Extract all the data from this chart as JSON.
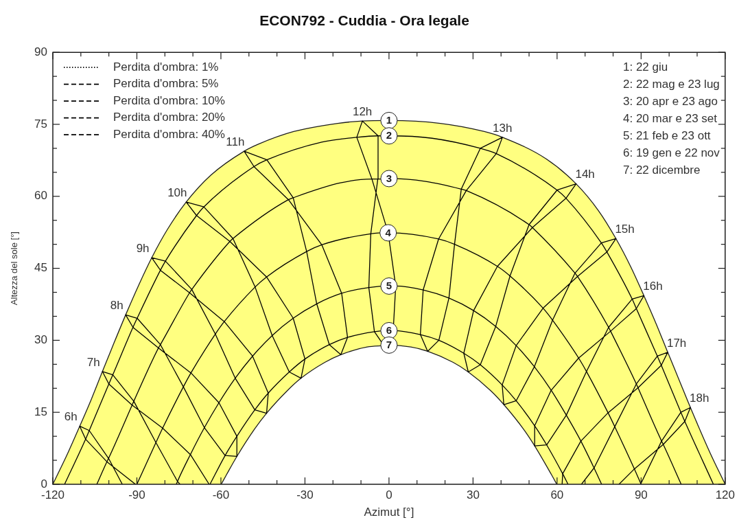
{
  "chart_data": {
    "type": "line",
    "title": "ECON792 - Cuddia - Ora legale",
    "xlabel": "Azimut [°]",
    "ylabel": "Altezza del sole [°]",
    "xlim": [
      -120,
      120
    ],
    "ylim": [
      0,
      90
    ],
    "xticks": [
      -120,
      {
        "value": -110,
        "label": null
      },
      {
        "value": -100,
        "label": null
      },
      -90,
      {
        "value": -80,
        "label": null
      },
      {
        "value": -70,
        "label": null
      },
      -60,
      {
        "value": -50,
        "label": null
      },
      {
        "value": -40,
        "label": null
      },
      -30,
      {
        "value": -20,
        "label": null
      },
      {
        "value": -10,
        "label": null
      },
      0,
      {
        "value": 10,
        "label": null
      },
      {
        "value": 20,
        "label": null
      },
      30,
      {
        "value": 40,
        "label": null
      },
      {
        "value": 50,
        "label": null
      },
      60,
      {
        "value": 70,
        "label": null
      },
      {
        "value": 80,
        "label": null
      },
      90,
      {
        "value": 100,
        "label": null
      },
      {
        "value": 110,
        "label": null
      },
      120
    ],
    "yticks": [
      0,
      {
        "value": 5,
        "label": null
      },
      {
        "value": 10,
        "label": null
      },
      15,
      {
        "value": 20,
        "label": null
      },
      {
        "value": 25,
        "label": null
      },
      30,
      {
        "value": 35,
        "label": null
      },
      {
        "value": 40,
        "label": null
      },
      45,
      {
        "value": 50,
        "label": null
      },
      {
        "value": 55,
        "label": null
      },
      60,
      {
        "value": 65,
        "label": null
      },
      {
        "value": 70,
        "label": null
      },
      75,
      {
        "value": 80,
        "label": null
      },
      {
        "value": 85,
        "label": null
      },
      90
    ],
    "marker": "none",
    "legend": "top left",
    "series": [
      {
        "name": "1",
        "type": "area",
        "color": "#ffff80",
        "x": [
          -120,
          -114.5,
          -110.4,
          -106.2,
          -102.3,
          -98.2,
          -94,
          -89.5,
          -84.7,
          -79.1,
          -72.4,
          -63.6,
          -51.7,
          -46.5,
          -34,
          -18.3,
          -9.5,
          0,
          18.3,
          34,
          40.5,
          56.1,
          66.8,
          74.8,
          81,
          86.4,
          91,
          95.4,
          99.5,
          103.6,
          107.6,
          114.5,
          120
        ],
        "values": [
          0,
          6.7,
          12.1,
          17.8,
          23.5,
          29.4,
          35.3,
          41.3,
          47.2,
          53.1,
          58.8,
          64.4,
          69.4,
          70.9,
          73.5,
          75.2,
          75.7,
          75.8,
          75.2,
          73.5,
          72.3,
          67.8,
          62.6,
          57,
          51.2,
          45.2,
          39.3,
          33.4,
          27.5,
          21.7,
          16,
          6.7,
          0
        ]
      },
      {
        "name": "2",
        "color": "#000000",
        "x": [
          -115.8,
          -108.3,
          -107,
          -100,
          -98.6,
          -91.4,
          -89.9,
          -81.6,
          -79.8,
          -68.7,
          -66.1,
          -48.2,
          -43.6,
          -24,
          -11.5,
          -3.9,
          0,
          15.4,
          32.6,
          38.3,
          60,
          63.2,
          75.8,
          77.8,
          86.8,
          88.3,
          95.8,
          97.2,
          104.2,
          105.6,
          115.8
        ],
        "values": [
          0,
          9.4,
          11.2,
          20.9,
          22.8,
          32.7,
          34.6,
          44.6,
          46.5,
          56,
          57.8,
          66.2,
          67.6,
          71.3,
          72.3,
          72.6,
          72.6,
          72.1,
          70,
          68.9,
          61.3,
          59.6,
          50.3,
          48.4,
          38.6,
          36.6,
          26.7,
          24.8,
          15,
          13.1,
          0
        ]
      },
      {
        "name": "3",
        "color": "#000000",
        "x": [
          -104.3,
          -100.7,
          -100.1,
          -91.7,
          -91.1,
          -82.3,
          -81.6,
          -71.2,
          -70.4,
          -56.8,
          -55.7,
          -35.9,
          -34.2,
          -17.3,
          -6.1,
          -4,
          0,
          13.1,
          25.8,
          27.6,
          50,
          51.2,
          66.4,
          67.3,
          78.4,
          79.1,
          88.3,
          88.9,
          97.3,
          97.9,
          104.3
        ],
        "values": [
          0,
          4.7,
          5.4,
          16.5,
          17.3,
          28.4,
          29.1,
          39.9,
          40.6,
          50.6,
          51.2,
          59.3,
          59.7,
          62.8,
          63.6,
          63.6,
          63.7,
          63.1,
          61.5,
          61.2,
          54.1,
          53.5,
          44,
          43.3,
          32.7,
          31.9,
          20.9,
          20.1,
          9,
          8.3,
          0
        ]
      },
      {
        "name": "4",
        "color": "#000000",
        "x": [
          -90,
          -83.2,
          -80.8,
          -73.4,
          -70.7,
          -62,
          -58.8,
          -47.8,
          -43.7,
          -29.4,
          -24,
          -6.5,
          -0.3,
          17.7,
          23.4,
          38.7,
          43.2,
          55,
          58.4,
          67.7,
          70.5,
          78.2,
          80.6,
          87.6,
          90
        ],
        "values": [
          0,
          8.7,
          11.7,
          20.3,
          23.2,
          31.3,
          33.9,
          41.1,
          43.2,
          48.5,
          49.9,
          52.2,
          52.4,
          51.1,
          50,
          45.4,
          43.4,
          36.7,
          34.2,
          26.3,
          23.5,
          14.9,
          12,
          3.2,
          0
        ]
      },
      {
        "name": "5",
        "color": "#000000",
        "x": [
          -75.9,
          -75.5,
          -70.9,
          -65.9,
          -60.7,
          -54.9,
          -48.7,
          -41.7,
          -34.2,
          -25.8,
          -16.9,
          -7.2,
          0,
          2.4,
          12.2,
          21.4,
          30.2,
          38.1,
          45.4,
          51.9,
          57.9,
          63.3,
          68.5,
          73.2,
          75.9
        ],
        "values": [
          0,
          0.6,
          6.2,
          11.8,
          17,
          22.1,
          26.7,
          31,
          34.6,
          37.6,
          39.8,
          41,
          41.3,
          41.3,
          40.5,
          38.8,
          36.2,
          32.9,
          28.9,
          24.5,
          19.6,
          14.4,
          9,
          3.4,
          0
        ]
      },
      {
        "name": "6",
        "color": "#000000",
        "x": [
          -63.9,
          -58.5,
          -54.3,
          -47.9,
          -43.1,
          -35.6,
          -30,
          -21.3,
          -14.8,
          -5.2,
          0,
          1.5,
          11.2,
          17.8,
          26.7,
          32.6,
          40.4,
          45.4,
          52,
          56.3,
          62,
          63.9
        ],
        "values": [
          0,
          6,
          10,
          15.5,
          19,
          23.4,
          26.1,
          29.1,
          30.6,
          31.8,
          32,
          32,
          31.2,
          30,
          27.3,
          24.9,
          20.7,
          17.4,
          12.2,
          8.2,
          2.2,
          0
        ]
      },
      {
        "name": "7",
        "type": "area",
        "color": "#ffffff",
        "x": [
          -59.9,
          -58,
          -54.3,
          -48,
          -43.7,
          -36.3,
          -31.4,
          -22.9,
          -17.2,
          -7.8,
          -1.8,
          0,
          7.8,
          13.8,
          22.9,
          28.3,
          36.3,
          41,
          48,
          52,
          58,
          59.9
        ],
        "values": [
          0,
          2,
          5.8,
          11.5,
          14.8,
          19.5,
          22.1,
          25.4,
          27,
          28.6,
          28.9,
          29,
          28.6,
          27.7,
          25.4,
          23.4,
          19.5,
          16.6,
          11.5,
          8,
          2,
          0
        ]
      },
      {
        "color": "#000000",
        "x": [
          -95.2,
          -100.1,
          -107,
          -110.4,
          -108.3,
          -100.7,
          -90.5,
          null,
          -74.6,
          -75.5,
          -83.2,
          -91.1,
          -98.6,
          -102.3,
          -100,
          -91.7,
          -80.8,
          -70.9,
          -64.2,
          null,
          -54.3,
          -58.5,
          -65.9,
          -73.4,
          -81.6,
          -89.9,
          -94,
          null,
          -94,
          -91.4,
          -82.3,
          -70.7,
          -60.7,
          -54.3,
          -54.3,
          null,
          -43.7,
          -47.9,
          -54.9,
          -62,
          -70.4,
          -79.8,
          -84.7,
          null,
          -84.7,
          -81.6,
          -71.2,
          -58.8,
          -48.7,
          -43.1,
          -43.7,
          null,
          -31.4,
          -35.6,
          -41.7,
          -47.8,
          -55.7,
          -66.1,
          -72.4,
          null,
          -72.4,
          -68.7,
          -56.8,
          -43.7,
          -34.2,
          -30,
          -31.4,
          null,
          -17.2,
          -21.3,
          -25.8,
          -29.4,
          -34.2,
          -43.6,
          -51.7,
          null,
          -51.7,
          -48.2,
          -35.9,
          -24,
          -16.9,
          -14.8,
          -17.2,
          null,
          -1.8,
          -5.2,
          -7.2,
          -6.5,
          -4,
          -3.9,
          -9.5,
          null,
          -9.5,
          -11.5,
          -6.1,
          -0.3,
          2.4,
          1.5,
          -1.8,
          null,
          13.8,
          11.2,
          12.2,
          17.7,
          27.6,
          38.3,
          40.5,
          null,
          40.5,
          32.6,
          25.8,
          23.4,
          21.4,
          17.8,
          13.8,
          null,
          28.3,
          26.7,
          30.2,
          38.7,
          51.2,
          63.2,
          66.8,
          null,
          66.8,
          60,
          50,
          43.2,
          38.1,
          32.6,
          28.3,
          null,
          41,
          40.4,
          45.4,
          55,
          67.3,
          77.8,
          81,
          null,
          81,
          75.8,
          66.4,
          58.4,
          51.9,
          45.4,
          41,
          null,
          52,
          52,
          57.9,
          67.7,
          79.1,
          88.3,
          91,
          null,
          91,
          86.8,
          78.4,
          70.5,
          63.3,
          56.3,
          52,
          null,
          61.8,
          62,
          68.5,
          78.2,
          88.9,
          97.2,
          99.5,
          95.8,
          88.3,
          80.6,
          73.2,
          68.7,
          null,
          82.1,
          87.6,
          97.9,
          105.6,
          107.6,
          104.2,
          97.3,
          89.8
        ],
        "values": [
          0,
          5.4,
          11.2,
          12.1,
          9.4,
          4.7,
          0,
          null,
          0,
          0.6,
          8.7,
          17.3,
          22.8,
          23.5,
          20.9,
          16.5,
          11.7,
          6.2,
          0,
          null,
          5.8,
          6,
          11.8,
          20.3,
          29.1,
          34.6,
          35.3,
          null,
          35.3,
          32.7,
          28.4,
          23.2,
          17,
          10,
          5.8,
          null,
          14.8,
          15.5,
          22.1,
          31.3,
          40.6,
          46.5,
          47.2,
          null,
          47.2,
          44.6,
          39.9,
          33.9,
          26.7,
          19,
          14.8,
          null,
          22.1,
          23.4,
          31,
          41.1,
          51.2,
          57.8,
          58.8,
          null,
          58.8,
          56,
          50.6,
          43.2,
          34.6,
          26.1,
          22.1,
          null,
          27,
          29.1,
          37.6,
          48.5,
          59.7,
          67.6,
          69.4,
          null,
          69.4,
          66.2,
          59.3,
          49.9,
          39.8,
          30.6,
          27,
          null,
          28.9,
          31.8,
          41,
          52.2,
          63.6,
          72.6,
          75.7,
          null,
          75.7,
          72.3,
          63.6,
          52.4,
          41.3,
          32,
          28.9,
          null,
          27.7,
          31.2,
          40.5,
          51.1,
          61.2,
          68.9,
          72.3,
          null,
          72.3,
          70,
          61.5,
          50,
          38.8,
          30,
          27.7,
          null,
          23.4,
          27.3,
          36.2,
          45.4,
          53.5,
          59.6,
          62.6,
          null,
          62.6,
          61.3,
          54.1,
          43.4,
          32.9,
          24.9,
          23.4,
          null,
          16.6,
          20.7,
          28.9,
          36.7,
          43.3,
          48.4,
          51.2,
          null,
          51.2,
          50.3,
          44,
          34.2,
          24.5,
          17.4,
          16.6,
          null,
          8,
          12.2,
          19.6,
          26.3,
          31.9,
          36.6,
          39.3,
          null,
          39.3,
          38.6,
          32.7,
          23.5,
          14.4,
          8.2,
          8,
          null,
          0,
          2.2,
          9,
          14.9,
          20.1,
          24.8,
          27.5,
          26.7,
          20.9,
          12,
          3.4,
          0,
          null,
          0,
          3.2,
          8.3,
          13.1,
          16,
          15,
          9,
          0
        ]
      },
      {
        "name": "Perdita d'ombra: 1%",
        "color": "#000000",
        "line_style": "dotted"
      },
      {
        "name": "Perdita d'ombra: 5%",
        "color": "#000000",
        "line_style": "dashed"
      },
      {
        "name": "Perdita d'ombra: 10%",
        "color": "#000000",
        "line_style": "dashed"
      },
      {
        "name": "Perdita d'ombra: 20%",
        "color": "#000000",
        "line_style": "dashed"
      },
      {
        "name": "Perdita d'ombra: 40%",
        "color": "#000000",
        "line_style": "dashed"
      }
    ],
    "annotations": [
      {
        "text": "6h",
        "x": -110.4,
        "y": 12.1
      },
      {
        "text": "7h",
        "x": -102.3,
        "y": 23.5
      },
      {
        "text": "8h",
        "x": -94,
        "y": 35.3
      },
      {
        "text": "9h",
        "x": -84.7,
        "y": 47.2
      },
      {
        "text": "10h",
        "x": -72.4,
        "y": 58.8
      },
      {
        "text": "11h",
        "x": -51.7,
        "y": 69.4
      },
      {
        "text": "12h",
        "x": -9.5,
        "y": 75.7
      },
      {
        "text": "13h",
        "x": 40.5,
        "y": 72.3
      },
      {
        "text": "14h",
        "x": 66.8,
        "y": 62.6
      },
      {
        "text": "15h",
        "x": 81,
        "y": 51.2
      },
      {
        "text": "16h",
        "x": 91,
        "y": 39.3
      },
      {
        "text": "17h",
        "x": 99.5,
        "y": 27.5
      },
      {
        "text": "18h",
        "x": 107.6,
        "y": 16
      },
      "1: 22 giu",
      "2: 22 mag e 23 lug",
      "3: 20 apr e 23 ago",
      "4: 20 mar e 23 set",
      "5: 21 feb e 23 ott",
      "6: 19 gen e 22 nov",
      "7: 22 dicembre"
    ]
  }
}
